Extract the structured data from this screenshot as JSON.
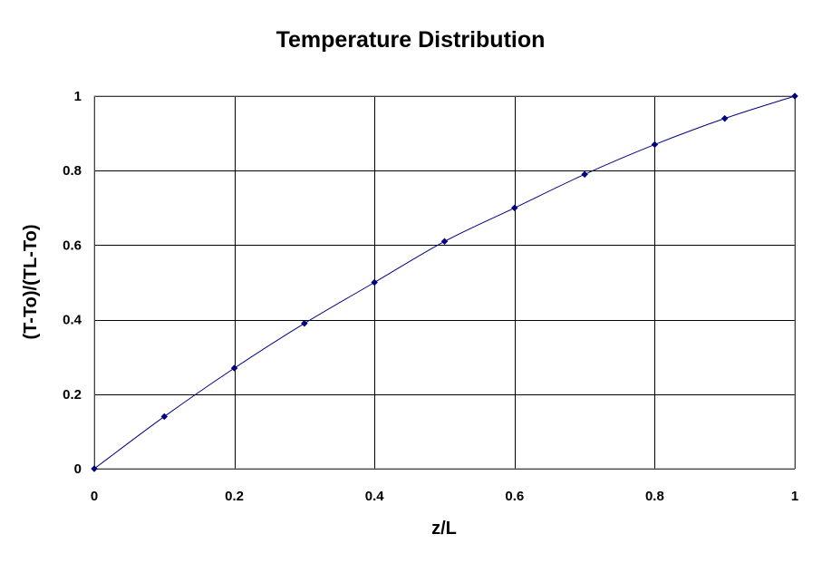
{
  "chart_data": {
    "type": "line",
    "title": "Temperature Distribution",
    "xlabel": "z/L",
    "ylabel": "(T-To)/(TL-To)",
    "xlim": [
      0,
      1
    ],
    "ylim": [
      0,
      1
    ],
    "x_ticks": [
      "0",
      "0.2",
      "0.4",
      "0.6",
      "0.8",
      "1"
    ],
    "y_ticks": [
      "0",
      "0.2",
      "0.4",
      "0.6",
      "0.8",
      "1"
    ],
    "grid": true,
    "legend": "none",
    "series": [
      {
        "color": "#000080",
        "marker": "diamond",
        "x": [
          0,
          0.1,
          0.2,
          0.3,
          0.4,
          0.5,
          0.6,
          0.7,
          0.8,
          0.9,
          1.0
        ],
        "y": [
          0,
          0.14,
          0.27,
          0.39,
          0.5,
          0.61,
          0.7,
          0.79,
          0.87,
          0.94,
          1.0
        ]
      }
    ]
  }
}
